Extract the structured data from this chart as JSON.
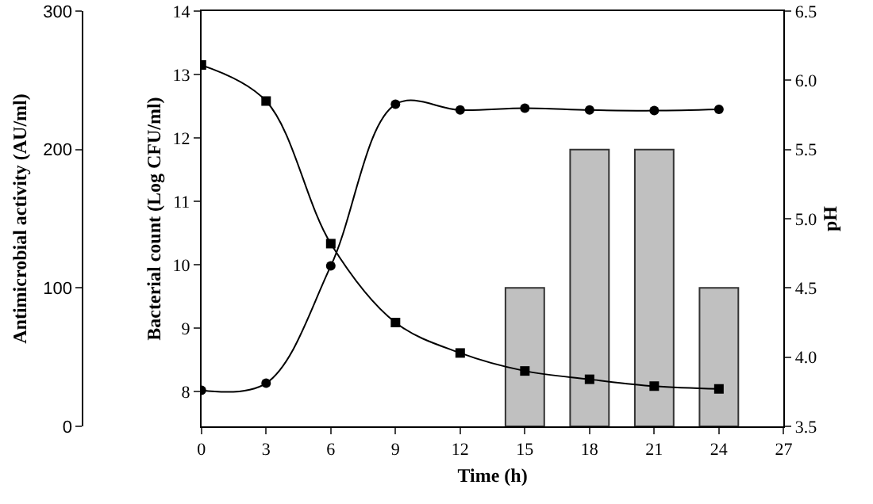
{
  "chart_data": {
    "type": "line",
    "xlabel": "Time (h)",
    "ylabel": "Bacterial count (Log CFU/ml)",
    "y2label": "pH",
    "y3label": "Antimicrobial activity (AU/ml)",
    "x": [
      0,
      3,
      6,
      9,
      12,
      15,
      18,
      21,
      24
    ],
    "series": [
      {
        "type": "bar",
        "axis": "y3",
        "color": "#c0c0c0",
        "x": [
          15,
          18,
          21,
          24
        ],
        "values": [
          100,
          200,
          200,
          100
        ]
      },
      {
        "axis": "y",
        "color": "#000000",
        "marker": "circle",
        "values": [
          8.02,
          8.13,
          9.98,
          12.53,
          12.44,
          12.47,
          12.44,
          12.43,
          12.45
        ]
      },
      {
        "axis": "y2",
        "color": "#000000",
        "marker": "square",
        "values": [
          6.11,
          5.85,
          4.82,
          4.25,
          4.03,
          3.9,
          3.84,
          3.79,
          3.77
        ]
      }
    ],
    "xlim": [
      0,
      27
    ],
    "xticks": [
      0,
      3,
      6,
      9,
      12,
      15,
      18,
      21,
      24,
      27
    ],
    "ylim": [
      7.45,
      14
    ],
    "yticks": [
      8,
      9,
      10,
      11,
      12,
      13,
      14
    ],
    "y2lim": [
      3.5,
      6.5
    ],
    "y2ticks": [
      {
        "value": 3.5,
        "label": "3.5"
      },
      {
        "value": 4,
        "label": "4.0"
      },
      {
        "value": 4.5,
        "label": "4.5"
      },
      {
        "value": 5,
        "label": "5.0"
      },
      {
        "value": 5.5,
        "label": "5.5"
      },
      {
        "value": 6,
        "label": "6.0"
      },
      {
        "value": 6.5,
        "label": "6.5"
      }
    ],
    "y3lim": [
      0,
      300
    ],
    "y3ticks": [
      0,
      100,
      200,
      300
    ]
  }
}
